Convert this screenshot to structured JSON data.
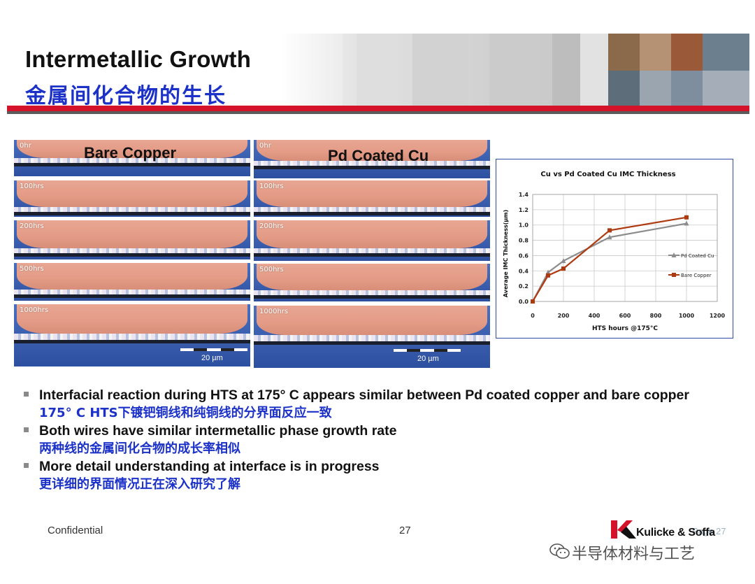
{
  "title": {
    "en": "Intermetallic Growth",
    "zh": "金属间化合物的生长"
  },
  "micrographs": {
    "bare_copper": {
      "heading": "Bare Copper",
      "panels": [
        "0hr",
        "100hrs",
        "200hrs",
        "500hrs",
        "1000hrs"
      ],
      "scale": "20 µm"
    },
    "pd_coated": {
      "heading": "Pd Coated Cu",
      "panels": [
        "0hr",
        "100hrs",
        "200hrs",
        "500hrs",
        "1000hrs"
      ],
      "scale": "20 µm"
    }
  },
  "chart_data": {
    "type": "line",
    "title": "Cu vs Pd Coated Cu IMC Thickness",
    "xlabel": "HTS hours @175°C",
    "ylabel": "Average IMC Thickness(µm)",
    "xlim": [
      0,
      1200
    ],
    "ylim": [
      0,
      1.4
    ],
    "xticks": [
      "0",
      "200",
      "400",
      "600",
      "800",
      "1000",
      "1200"
    ],
    "yticks": [
      "0.0",
      "0.2",
      "0.4",
      "0.6",
      "0.8",
      "1.0",
      "1.2",
      "1.4"
    ],
    "grid": true,
    "legend_position": "right",
    "series": [
      {
        "name": "Pd Coated Cu",
        "marker": "triangle",
        "color": "#8c8c8c",
        "x": [
          0,
          100,
          200,
          500,
          1000
        ],
        "y": [
          0.0,
          0.38,
          0.53,
          0.84,
          1.02
        ]
      },
      {
        "name": "Bare Copper",
        "marker": "square",
        "color": "#b03a10",
        "x": [
          0,
          100,
          200,
          500,
          1000
        ],
        "y": [
          0.0,
          0.34,
          0.43,
          0.93,
          1.1
        ]
      }
    ]
  },
  "bullets": [
    {
      "en": "Interfacial reaction during HTS at 175° C appears similar between Pd coated copper and bare copper",
      "zh": "175° C HTS下镀钯铜线和纯铜线的分界面反应一致"
    },
    {
      "en": "Both wires have similar intermetallic phase growth rate",
      "zh": "两种线的金属间化合物的成长率相似"
    },
    {
      "en": "More detail understanding at interface is in progress",
      "zh": "更详细的界面情况正在深入研究了解"
    }
  ],
  "footer": {
    "confidential": "Confidential",
    "page": "27",
    "brand": "Kulicke & Soffa",
    "brand_ghost": "Page 27",
    "watermark": "半导体材料与工艺"
  },
  "colors": {
    "title_blue": "#1b31c8",
    "rule_red": "#d4122a",
    "bare_copper": "#b03a10",
    "pd_coated": "#8c8c8c"
  }
}
